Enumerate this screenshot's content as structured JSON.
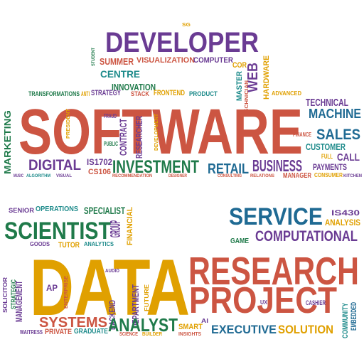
{
  "colors": {
    "red": "#cc5542",
    "purple": "#6a3b93",
    "blue": "#1f6a93",
    "green": "#1f7a4a",
    "orange": "#e0a000",
    "teal": "#1c8a8a"
  },
  "words": [
    {
      "text": "DEVELOPER",
      "color": "purple"
    },
    {
      "text": "SG",
      "color": "orange"
    },
    {
      "text": "STUDENT",
      "color": "green"
    },
    {
      "text": "SUMMER",
      "color": "red"
    },
    {
      "text": "VISUALIZATION",
      "color": "red"
    },
    {
      "text": "COMPUTER",
      "color": "purple"
    },
    {
      "text": "COR",
      "color": "orange"
    },
    {
      "text": "WEB",
      "color": "purple"
    },
    {
      "text": "HARDWARE",
      "color": "orange"
    },
    {
      "text": "CENTRE",
      "color": "teal"
    },
    {
      "text": "INNOVATION",
      "color": "green"
    },
    {
      "text": "MASTER",
      "color": "teal"
    },
    {
      "text": "TRANSFORMATIONS",
      "color": "green"
    },
    {
      "text": "ANTI",
      "color": "orange"
    },
    {
      "text": "STRATEGY",
      "color": "purple"
    },
    {
      "text": "STACK",
      "color": "red"
    },
    {
      "text": "FRONTEND",
      "color": "orange"
    },
    {
      "text": "PRODUCT",
      "color": "teal"
    },
    {
      "text": "TECHNICIAN",
      "color": "red"
    },
    {
      "text": "ADVANCED",
      "color": "orange"
    },
    {
      "text": "TECHNICAL",
      "color": "purple"
    },
    {
      "text": "SOFTWARE",
      "color": "red"
    },
    {
      "text": "MACHINE",
      "color": "blue"
    },
    {
      "text": "MARKETING",
      "color": "green"
    },
    {
      "text": "PRESIDENT",
      "color": "orange"
    },
    {
      "text": "FRAUD",
      "color": "purple"
    },
    {
      "text": "CONTRACT",
      "color": "purple"
    },
    {
      "text": "PUBLIC",
      "color": "green"
    },
    {
      "text": "RESEARCHER",
      "color": "purple"
    },
    {
      "text": "DEVELOPMENT",
      "color": "orange"
    },
    {
      "text": "FINANCE",
      "color": "red"
    },
    {
      "text": "SALES",
      "color": "blue"
    },
    {
      "text": "CUSTOMER",
      "color": "teal"
    },
    {
      "text": "FULL",
      "color": "orange"
    },
    {
      "text": "CALL",
      "color": "purple"
    },
    {
      "text": "DIGITAL",
      "color": "purple"
    },
    {
      "text": "IS1702",
      "color": "purple"
    },
    {
      "text": "INVESTMENT",
      "color": "green"
    },
    {
      "text": "RETAIL",
      "color": "blue"
    },
    {
      "text": "BUSINESS",
      "color": "purple"
    },
    {
      "text": "PAYMENTS",
      "color": "purple"
    },
    {
      "text": "CS106",
      "color": "red"
    },
    {
      "text": "MUSIC",
      "color": "purple"
    },
    {
      "text": "ALGORITHM",
      "color": "teal"
    },
    {
      "text": "VISUAL",
      "color": "purple"
    },
    {
      "text": "RECOMMENDATION",
      "color": "red"
    },
    {
      "text": "DESIGNER",
      "color": "red"
    },
    {
      "text": "CONSULTING",
      "color": "red"
    },
    {
      "text": "RELATIONS",
      "color": "red"
    },
    {
      "text": "MANAGER",
      "color": "red"
    },
    {
      "text": "CONSUMER",
      "color": "orange"
    },
    {
      "text": "KITCHEN",
      "color": "purple"
    },
    {
      "text": "SENIOR",
      "color": "purple"
    },
    {
      "text": "OPERATIONS",
      "color": "teal"
    },
    {
      "text": "SPECIALIST",
      "color": "green"
    },
    {
      "text": "SERVICE",
      "color": "blue"
    },
    {
      "text": "IS430",
      "color": "purple"
    },
    {
      "text": "ANALYSIS",
      "color": "orange"
    },
    {
      "text": "SCIENTIST",
      "color": "green"
    },
    {
      "text": "GROUP",
      "color": "purple"
    },
    {
      "text": "FINANCIAL",
      "color": "orange"
    },
    {
      "text": "COMPUTATIONAL",
      "color": "purple"
    },
    {
      "text": "GAME",
      "color": "green"
    },
    {
      "text": "GOODS",
      "color": "purple"
    },
    {
      "text": "TUTOR",
      "color": "orange"
    },
    {
      "text": "ANALYTICS",
      "color": "teal"
    },
    {
      "text": "SOLICITOR",
      "color": "purple"
    },
    {
      "text": "STRATEGIC",
      "color": "green"
    },
    {
      "text": "MANAGEMENT",
      "color": "purple"
    },
    {
      "text": "DATA",
      "color": "orange"
    },
    {
      "text": "RESEARCH",
      "color": "red"
    },
    {
      "text": "AUDIO",
      "color": "purple"
    },
    {
      "text": "AP",
      "color": "purple"
    },
    {
      "text": "ENTERPRISE",
      "color": "red"
    },
    {
      "text": "BACKEND",
      "color": "purple"
    },
    {
      "text": "DEPARTMENT",
      "color": "purple"
    },
    {
      "text": "FUTURE",
      "color": "orange"
    },
    {
      "text": "PROJECT",
      "color": "red"
    },
    {
      "text": "UX",
      "color": "purple"
    },
    {
      "text": "CASHIER",
      "color": "purple"
    },
    {
      "text": "COMMUNITY",
      "color": "teal"
    },
    {
      "text": "EMBEDDED",
      "color": "blue"
    },
    {
      "text": "SYSTEMS",
      "color": "red"
    },
    {
      "text": "ANALYST",
      "color": "green"
    },
    {
      "text": "AI",
      "color": "purple"
    },
    {
      "text": "EXECUTIVE",
      "color": "blue"
    },
    {
      "text": "SOLUTION",
      "color": "orange"
    },
    {
      "text": "WAITRESS",
      "color": "purple"
    },
    {
      "text": "PRIVATE",
      "color": "red"
    },
    {
      "text": "GRADUATE",
      "color": "teal"
    },
    {
      "text": "SCIENCE",
      "color": "red"
    },
    {
      "text": "BUILDER",
      "color": "orange"
    },
    {
      "text": "SMART",
      "color": "orange"
    },
    {
      "text": "INSIGHTS",
      "color": "red"
    }
  ]
}
